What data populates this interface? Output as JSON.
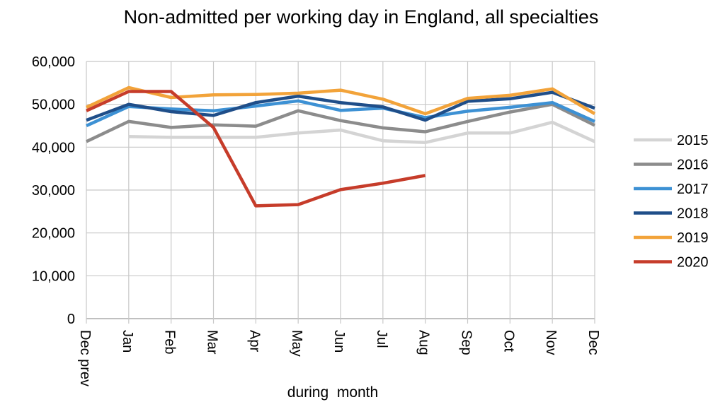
{
  "chart_data": {
    "type": "line",
    "title": "Non-admitted per working day in England, all specialties",
    "xlabel": "during  month",
    "ylabel": "",
    "categories": [
      "Dec prev",
      "Jan",
      "Feb",
      "Mar",
      "Apr",
      "May",
      "Jun",
      "Jul",
      "Aug",
      "Sep",
      "Oct",
      "Nov",
      "Dec"
    ],
    "ylim": [
      0,
      60000
    ],
    "yticks": [
      "0",
      "10,000",
      "20,000",
      "30,000",
      "40,000",
      "50,000",
      "60,000"
    ],
    "grid": true,
    "legend_position": "right",
    "series": [
      {
        "name": "2015",
        "color": "#d4d4d4",
        "values": [
          null,
          42500,
          42300,
          42300,
          42300,
          43300,
          44000,
          41500,
          41100,
          43300,
          43300,
          45800,
          41300
        ]
      },
      {
        "name": "2016",
        "color": "#8c8c8c",
        "values": [
          41300,
          46000,
          44600,
          45200,
          44900,
          48500,
          46200,
          44500,
          43600,
          46000,
          48200,
          50000,
          45100
        ]
      },
      {
        "name": "2017",
        "color": "#3d91d4",
        "values": [
          45000,
          49500,
          48900,
          48500,
          49600,
          50800,
          48600,
          49100,
          46900,
          48400,
          49300,
          50400,
          46000
        ]
      },
      {
        "name": "2018",
        "color": "#1f4e89",
        "values": [
          46300,
          50000,
          48300,
          47400,
          50400,
          51900,
          50400,
          49400,
          46300,
          50700,
          51300,
          52800,
          49100
        ]
      },
      {
        "name": "2019",
        "color": "#f2a33a",
        "values": [
          49300,
          53900,
          51600,
          52200,
          52300,
          52600,
          53300,
          51200,
          47800,
          51400,
          52100,
          53600,
          47800
        ]
      },
      {
        "name": "2020",
        "color": "#c63c2a",
        "values": [
          48500,
          53000,
          53000,
          44600,
          26300,
          26600,
          30100,
          31600,
          33400,
          null,
          null,
          null,
          null
        ]
      }
    ]
  }
}
